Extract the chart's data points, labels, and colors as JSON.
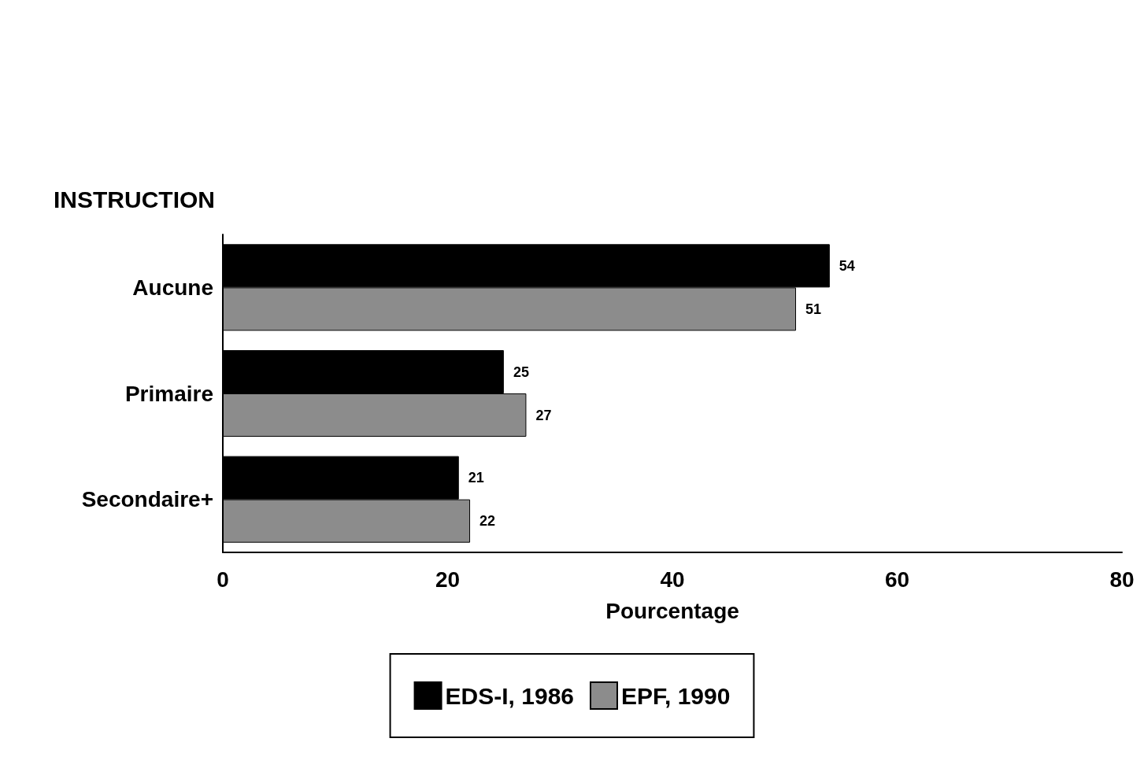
{
  "chart_data": {
    "type": "bar",
    "orientation": "horizontal",
    "ylabel": "INSTRUCTION",
    "xlabel": "Pourcentage",
    "categories": [
      "Aucune",
      "Primaire",
      "Secondaire+"
    ],
    "series": [
      {
        "name": "EDS-I, 1986",
        "color": "#000000",
        "values": [
          54,
          25,
          21
        ]
      },
      {
        "name": "EPF, 1990",
        "color": "#8c8c8c",
        "values": [
          51,
          27,
          22
        ]
      }
    ],
    "xlim": [
      0,
      80
    ],
    "xticks": [
      0,
      20,
      40,
      60,
      80
    ],
    "data_labels": true,
    "grid": false,
    "legend": "bottom"
  }
}
